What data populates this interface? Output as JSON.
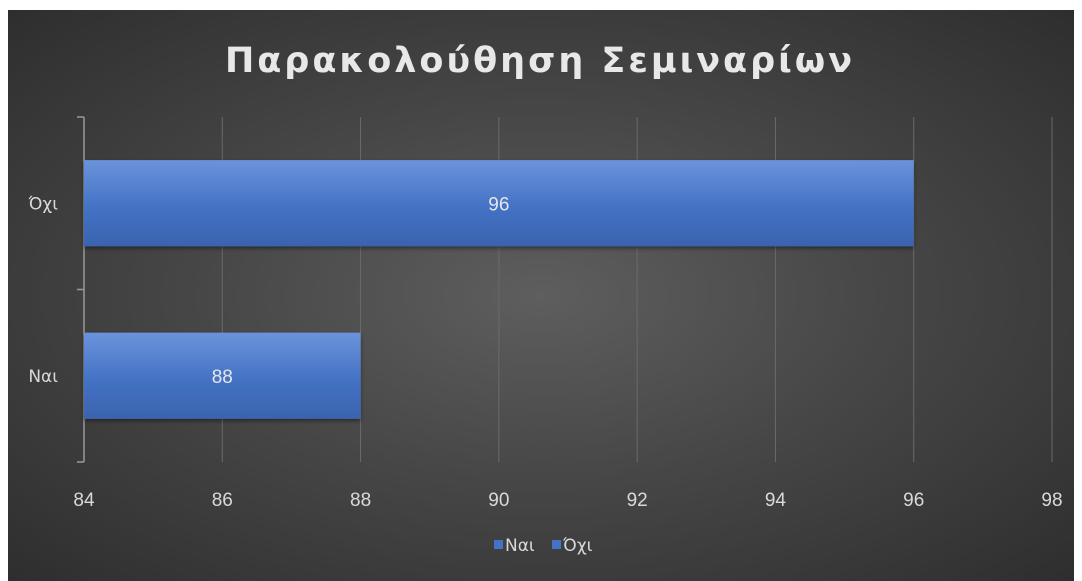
{
  "chart_data": {
    "type": "bar",
    "orientation": "horizontal",
    "title": "Παρακολούθηση Σεμιναρίων",
    "categories": [
      "Ναι",
      "Όχι"
    ],
    "series": [
      {
        "name": "Ναι",
        "category": "Ναι",
        "value": 88
      },
      {
        "name": "Όχι",
        "category": "Όχι",
        "value": 96
      }
    ],
    "values": [
      88,
      96
    ],
    "xlim": [
      84,
      98
    ],
    "xticks": [
      "84",
      "86",
      "88",
      "90",
      "92",
      "94",
      "96",
      "98"
    ],
    "grid": true,
    "legend_position": "bottom",
    "bar_color": "#4472c4",
    "background_color": "#404040",
    "text_color": "#d9d9d9"
  }
}
